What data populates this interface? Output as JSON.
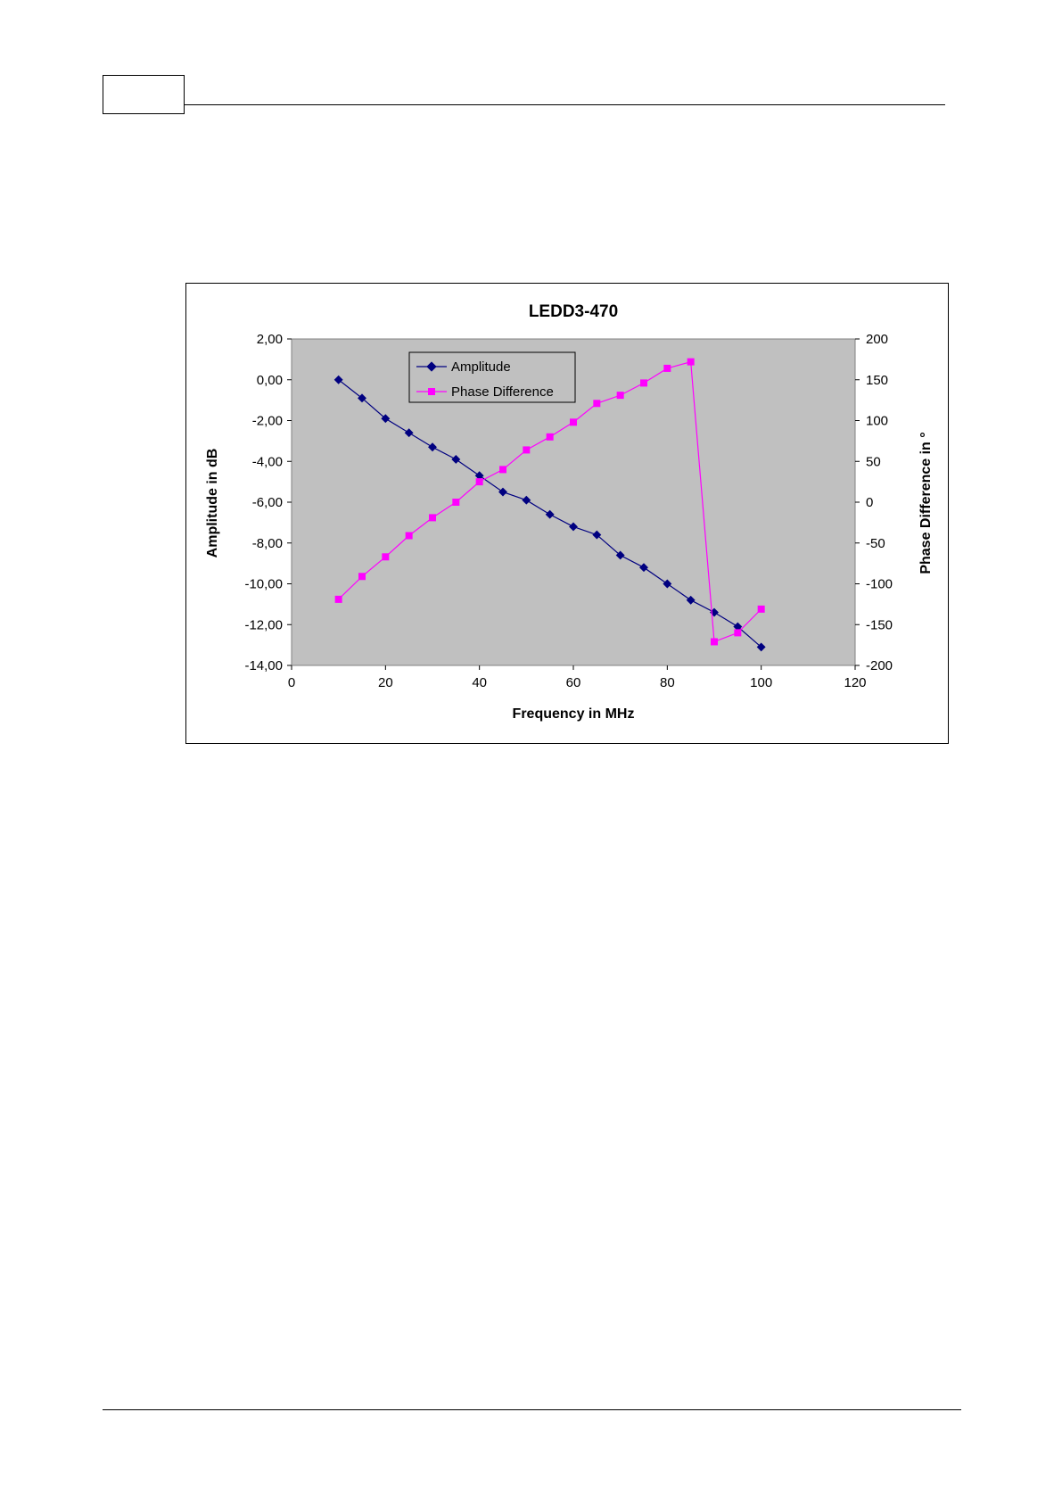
{
  "page": {
    "page_number": ""
  },
  "chart_data": {
    "type": "line",
    "title": "LEDD3-470",
    "xlabel": "Frequency in MHz",
    "ylabel_left": "Amplitude in dB",
    "ylabel_right": "Phase Difference in °",
    "xlim": [
      0,
      120
    ],
    "x_ticks": [
      "0",
      "20",
      "40",
      "60",
      "80",
      "100",
      "120"
    ],
    "ylim_left": [
      -14,
      2
    ],
    "y_ticks_left": [
      "2,00",
      "0,00",
      "-2,00",
      "-4,00",
      "-6,00",
      "-8,00",
      "-10,00",
      "-12,00",
      "-14,00"
    ],
    "ylim_right": [
      -200,
      200
    ],
    "y_ticks_right": [
      "200",
      "150",
      "100",
      "50",
      "0",
      "-50",
      "-100",
      "-150",
      "-200"
    ],
    "grid": false,
    "plot_background": "#c0c0c0",
    "legend_position": "top-left",
    "series": [
      {
        "name": "Amplitude",
        "axis": "left",
        "marker": "diamond",
        "color": "#000080",
        "x": [
          10,
          15,
          20,
          25,
          30,
          35,
          40,
          45,
          50,
          55,
          60,
          65,
          70,
          75,
          80,
          85,
          90,
          95,
          100
        ],
        "values": [
          0.0,
          -0.9,
          -1.9,
          -2.6,
          -3.3,
          -3.9,
          -4.7,
          -5.5,
          -5.9,
          -6.6,
          -7.2,
          -7.6,
          -8.6,
          -9.2,
          -10.0,
          -10.8,
          -11.4,
          -12.1,
          -13.1
        ]
      },
      {
        "name": "Phase Difference",
        "axis": "right",
        "marker": "square",
        "color": "#ff00ff",
        "x": [
          10,
          15,
          20,
          25,
          30,
          35,
          40,
          45,
          50,
          55,
          60,
          65,
          70,
          75,
          80,
          85,
          90,
          95,
          100
        ],
        "values": [
          -119,
          -91,
          -67,
          -41,
          -19,
          0,
          25,
          40,
          64,
          80,
          98,
          121,
          131,
          146,
          164,
          172,
          -171,
          -160,
          -131
        ]
      }
    ]
  }
}
